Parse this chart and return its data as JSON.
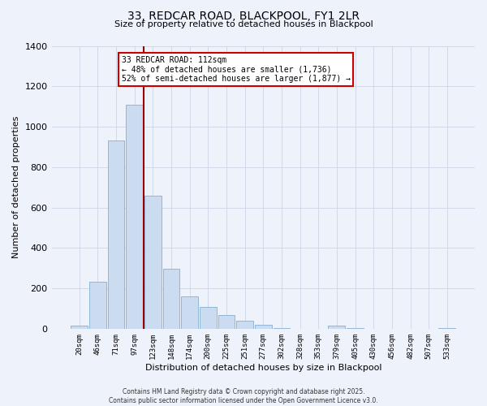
{
  "title": "33, REDCAR ROAD, BLACKPOOL, FY1 2LR",
  "subtitle": "Size of property relative to detached houses in Blackpool",
  "xlabel": "Distribution of detached houses by size in Blackpool",
  "ylabel": "Number of detached properties",
  "bar_labels": [
    "20sqm",
    "46sqm",
    "71sqm",
    "97sqm",
    "123sqm",
    "148sqm",
    "174sqm",
    "200sqm",
    "225sqm",
    "251sqm",
    "277sqm",
    "302sqm",
    "328sqm",
    "353sqm",
    "379sqm",
    "405sqm",
    "430sqm",
    "456sqm",
    "482sqm",
    "507sqm",
    "533sqm"
  ],
  "bar_values": [
    15,
    234,
    932,
    1108,
    657,
    298,
    160,
    108,
    68,
    38,
    18,
    5,
    0,
    0,
    15,
    5,
    0,
    0,
    0,
    0,
    5
  ],
  "bar_color": "#ccdcf0",
  "bar_edgecolor": "#88aed0",
  "property_line_x": 3.5,
  "property_line_color": "#990000",
  "annotation_text": "33 REDCAR ROAD: 112sqm\n← 48% of detached houses are smaller (1,736)\n52% of semi-detached houses are larger (1,877) →",
  "annotation_box_edgecolor": "#cc0000",
  "annotation_box_facecolor": "#ffffff",
  "ylim": [
    0,
    1400
  ],
  "yticks": [
    0,
    200,
    400,
    600,
    800,
    1000,
    1200,
    1400
  ],
  "footer_line1": "Contains HM Land Registry data © Crown copyright and database right 2025.",
  "footer_line2": "Contains public sector information licensed under the Open Government Licence v3.0.",
  "bg_color": "#eef2fb",
  "grid_color": "#c8cfe0"
}
